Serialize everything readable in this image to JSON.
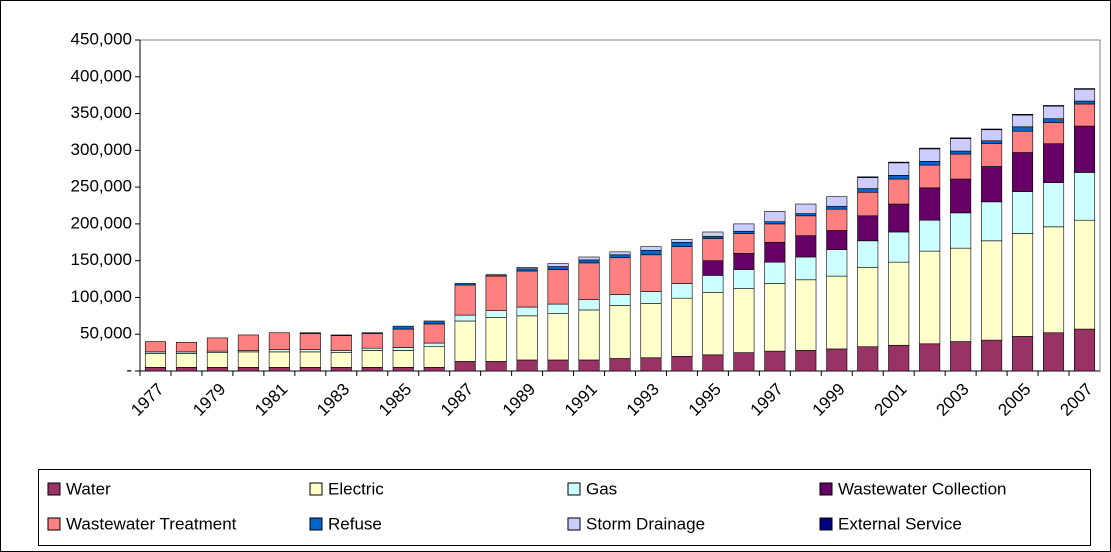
{
  "chart_data": {
    "type": "stacked_bar",
    "categories": [
      "1977",
      null,
      "1979",
      null,
      "1981",
      null,
      "1983",
      null,
      "1985",
      null,
      "1987",
      null,
      "1989",
      null,
      "1991",
      null,
      "1993",
      null,
      "1995",
      null,
      "1997",
      null,
      "1999",
      null,
      "2001",
      null,
      "2003",
      null,
      "2005",
      null,
      "2007"
    ],
    "series": [
      {
        "name": "Water",
        "color": "#993366",
        "values": [
          5000,
          5000,
          5000,
          5000,
          5000,
          5000,
          5000,
          5000,
          5000,
          5000,
          13000,
          13000,
          15000,
          15000,
          15000,
          17000,
          18000,
          20000,
          22000,
          25000,
          27000,
          28000,
          30000,
          33000,
          35000,
          37000,
          40000,
          42000,
          47000,
          52000,
          57000
        ]
      },
      {
        "name": "Electric",
        "color": "#ffffcc",
        "values": [
          19000,
          19000,
          20000,
          21000,
          21000,
          21000,
          20000,
          23000,
          23000,
          28000,
          55000,
          60000,
          60000,
          63000,
          68000,
          72000,
          74000,
          79000,
          85000,
          87000,
          92000,
          96000,
          99000,
          108000,
          113000,
          126000,
          127000,
          135000,
          140000,
          144000,
          148000
        ]
      },
      {
        "name": "Gas",
        "color": "#ccffff",
        "values": [
          2000,
          2000,
          2000,
          2000,
          3000,
          3000,
          3000,
          3000,
          4000,
          5000,
          8000,
          9000,
          12000,
          13000,
          14000,
          15000,
          16000,
          20000,
          23000,
          26000,
          29000,
          31000,
          36000,
          36000,
          41000,
          42000,
          48000,
          53000,
          57000,
          60000,
          65000
        ]
      },
      {
        "name": "Wastewater Collection",
        "color": "#660066",
        "values": [
          0,
          0,
          0,
          0,
          0,
          0,
          0,
          0,
          0,
          0,
          0,
          0,
          0,
          0,
          0,
          0,
          0,
          0,
          20000,
          22000,
          27000,
          29000,
          26000,
          34000,
          38000,
          44000,
          46000,
          48000,
          53000,
          53000,
          63000
        ]
      },
      {
        "name": "Wastewater Treatment",
        "color": "#ff8080",
        "values": [
          14000,
          13000,
          18000,
          21000,
          23000,
          22000,
          20000,
          20000,
          25000,
          26000,
          41000,
          47000,
          49000,
          47000,
          50000,
          50000,
          50000,
          50000,
          30000,
          27000,
          25000,
          27000,
          29000,
          32000,
          34000,
          31000,
          34000,
          31000,
          29000,
          29000,
          30000
        ]
      },
      {
        "name": "Refuse",
        "color": "#0066cc",
        "values": [
          0,
          0,
          0,
          0,
          0,
          1000,
          1000,
          1000,
          4000,
          4000,
          2000,
          2000,
          3000,
          4000,
          4000,
          4000,
          6000,
          6000,
          3000,
          3000,
          3000,
          3000,
          4000,
          5000,
          5000,
          5000,
          4000,
          4000,
          6000,
          5000,
          4000
        ]
      },
      {
        "name": "Storm Drainage",
        "color": "#ccccff",
        "values": [
          0,
          0,
          0,
          0,
          0,
          0,
          0,
          0,
          0,
          0,
          0,
          0,
          2000,
          4000,
          4000,
          4000,
          5000,
          4000,
          6000,
          10000,
          14000,
          13000,
          13000,
          15000,
          17000,
          17000,
          17000,
          15000,
          16000,
          17000,
          16000
        ]
      },
      {
        "name": "External Service",
        "color": "#000080",
        "values": [
          0,
          0,
          0,
          0,
          0,
          0,
          0,
          0,
          0,
          0,
          0,
          0,
          0,
          0,
          0,
          0,
          0,
          0,
          0,
          0,
          0,
          0,
          0,
          1000,
          1000,
          1000,
          1000,
          1000,
          1000,
          1000,
          1000
        ]
      }
    ],
    "ylim": [
      0,
      450000
    ],
    "yticks": [
      {
        "value": 0,
        "label": "-"
      },
      {
        "value": 50000,
        "label": "50,000"
      },
      {
        "value": 100000,
        "label": "100,000"
      },
      {
        "value": 150000,
        "label": "150,000"
      },
      {
        "value": 200000,
        "label": "200,000"
      },
      {
        "value": 250000,
        "label": "250,000"
      },
      {
        "value": 300000,
        "label": "300,000"
      },
      {
        "value": 350000,
        "label": "350,000"
      },
      {
        "value": 400000,
        "label": "400,000"
      },
      {
        "value": 450000,
        "label": "450,000"
      }
    ],
    "grid": false,
    "legend": "bottom"
  }
}
